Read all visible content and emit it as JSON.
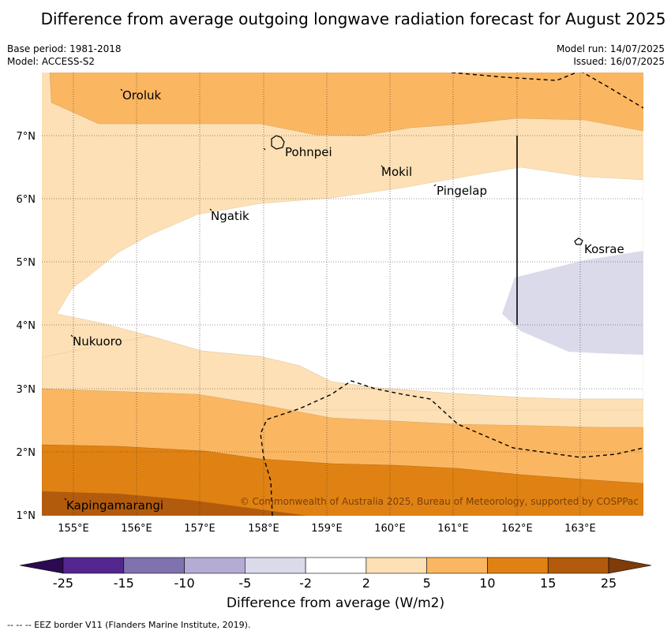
{
  "title": "Difference from average outgoing longwave radiation forecast for August 2025",
  "meta": {
    "base_period": "Base period: 1981-2018",
    "model": "Model: ACCESS-S2",
    "model_run": "Model run: 14/07/2025",
    "issued": "Issued: 16/07/2025"
  },
  "map": {
    "lon_ticks": [
      "155°E",
      "156°E",
      "157°E",
      "158°E",
      "159°E",
      "160°E",
      "161°E",
      "162°E",
      "163°E"
    ],
    "lat_ticks": [
      "7°N",
      "6°N",
      "5°N",
      "4°N",
      "3°N",
      "2°N",
      "1°N"
    ],
    "places": [
      {
        "name": "Oroluk",
        "lon": 155.7,
        "lat": 7.7
      },
      {
        "name": "Pohnpei",
        "lon": 158.2,
        "lat": 6.9
      },
      {
        "name": "Mokil",
        "lon": 159.8,
        "lat": 6.7
      },
      {
        "name": "Pingelap",
        "lon": 160.7,
        "lat": 6.2
      },
      {
        "name": "Ngatik",
        "lon": 157.1,
        "lat": 5.8
      },
      {
        "name": "Kosrae",
        "lon": 163.0,
        "lat": 5.3
      },
      {
        "name": "Nukuoro",
        "lon": 155.0,
        "lat": 3.85
      },
      {
        "name": "Kapingamarangi",
        "lon": 154.9,
        "lat": 1.1
      }
    ],
    "copyright": "© Commonwealth of Australia 2025, Bureau of Meteorology, supported by COSPPac"
  },
  "colorbar": {
    "ticks": [
      "-25",
      "-15",
      "-10",
      "-5",
      "-2",
      "2",
      "5",
      "10",
      "15",
      "25"
    ],
    "colors": [
      "#2b0a52",
      "#54278f",
      "#8072ad",
      "#b4acd4",
      "#dadaeb",
      "#ffffff",
      "#fde0b5",
      "#fbb661",
      "#e08213",
      "#b25b0c",
      "#7f3b08"
    ],
    "label": "Difference from average (W/m2)"
  },
  "eez_note": "--  --  -- EEZ border V11 (Flanders Marine Institute, 2019)."
}
